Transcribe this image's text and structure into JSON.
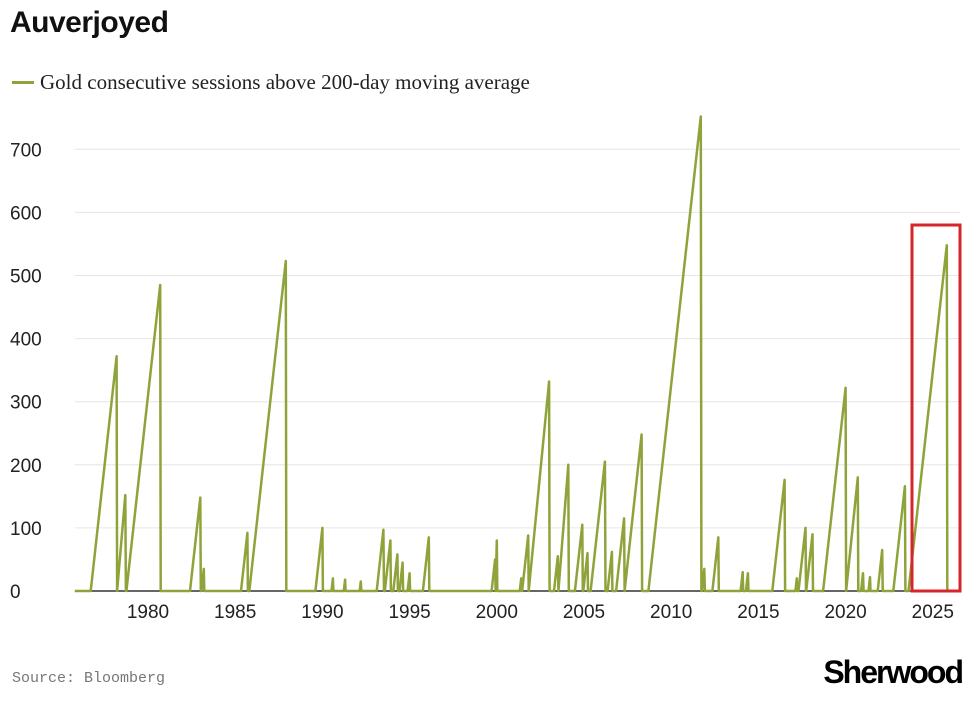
{
  "header": {
    "title": "Auverjoyed"
  },
  "footer": {
    "source": "Source: Bloomberg",
    "brand": "Sherwood"
  },
  "colors": {
    "line": "#8fa33b",
    "highlight": "#d9242b",
    "grid": "#e6e6e6"
  },
  "chart_data": {
    "type": "line",
    "title": "Auverjoyed",
    "xlabel": "",
    "ylabel": "",
    "legend": [
      {
        "label": "Gold consecutive sessions above 200-day moving average",
        "position": "top-left"
      }
    ],
    "xlim": [
      1975.8,
      2026.5
    ],
    "ylim": [
      0,
      750
    ],
    "yticks": [
      0,
      100,
      200,
      300,
      400,
      500,
      600,
      700
    ],
    "xticks": [
      1980,
      1985,
      1990,
      1995,
      2000,
      2005,
      2010,
      2015,
      2020,
      2025
    ],
    "grid": "horizontal",
    "annotation": "red box highlighting 2024-2026 rise",
    "highlight_range": {
      "x": [
        2024.5,
        2027
      ],
      "y": [
        0,
        580
      ]
    },
    "peaks": [
      {
        "year": 1978.2,
        "value": 372
      },
      {
        "year": 1978.7,
        "value": 152
      },
      {
        "year": 1980.7,
        "value": 485
      },
      {
        "year": 1983.0,
        "value": 148
      },
      {
        "year": 1983.2,
        "value": 35
      },
      {
        "year": 1985.7,
        "value": 92
      },
      {
        "year": 1987.9,
        "value": 523
      },
      {
        "year": 1990.0,
        "value": 100
      },
      {
        "year": 1990.6,
        "value": 20
      },
      {
        "year": 1991.3,
        "value": 18
      },
      {
        "year": 1992.2,
        "value": 15
      },
      {
        "year": 1993.5,
        "value": 97
      },
      {
        "year": 1993.9,
        "value": 80
      },
      {
        "year": 1994.3,
        "value": 58
      },
      {
        "year": 1994.6,
        "value": 45
      },
      {
        "year": 1995.0,
        "value": 28
      },
      {
        "year": 1996.1,
        "value": 85
      },
      {
        "year": 1999.9,
        "value": 50
      },
      {
        "year": 2000.0,
        "value": 80
      },
      {
        "year": 2001.4,
        "value": 20
      },
      {
        "year": 2001.8,
        "value": 88
      },
      {
        "year": 2003.0,
        "value": 332
      },
      {
        "year": 2003.5,
        "value": 55
      },
      {
        "year": 2004.1,
        "value": 200
      },
      {
        "year": 2004.9,
        "value": 105
      },
      {
        "year": 2005.2,
        "value": 60
      },
      {
        "year": 2006.2,
        "value": 205
      },
      {
        "year": 2006.6,
        "value": 62
      },
      {
        "year": 2007.3,
        "value": 115
      },
      {
        "year": 2008.3,
        "value": 248
      },
      {
        "year": 2011.7,
        "value": 752
      },
      {
        "year": 2011.9,
        "value": 35
      },
      {
        "year": 2012.7,
        "value": 85
      },
      {
        "year": 2014.1,
        "value": 30
      },
      {
        "year": 2014.4,
        "value": 28
      },
      {
        "year": 2016.5,
        "value": 176
      },
      {
        "year": 2017.2,
        "value": 20
      },
      {
        "year": 2017.7,
        "value": 100
      },
      {
        "year": 2018.1,
        "value": 90
      },
      {
        "year": 2020.0,
        "value": 322
      },
      {
        "year": 2020.7,
        "value": 180
      },
      {
        "year": 2021.0,
        "value": 28
      },
      {
        "year": 2021.4,
        "value": 22
      },
      {
        "year": 2022.1,
        "value": 65
      },
      {
        "year": 2023.4,
        "value": 166
      },
      {
        "year": 2025.8,
        "value": 548
      }
    ]
  }
}
